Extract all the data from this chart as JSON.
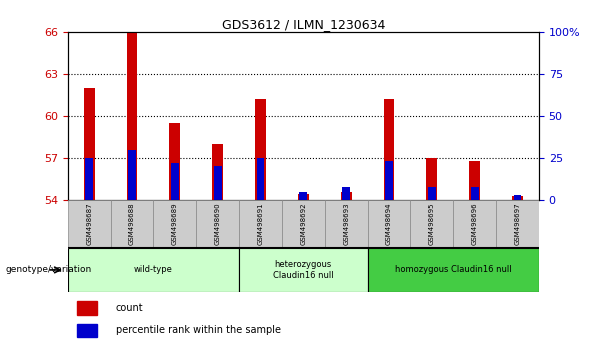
{
  "title": "GDS3612 / ILMN_1230634",
  "samples": [
    "GSM498687",
    "GSM498688",
    "GSM498689",
    "GSM498690",
    "GSM498691",
    "GSM498692",
    "GSM498693",
    "GSM498694",
    "GSM498695",
    "GSM498696",
    "GSM498697"
  ],
  "count_values": [
    62.0,
    66.0,
    59.5,
    58.0,
    61.2,
    54.4,
    54.6,
    61.2,
    57.0,
    56.8,
    54.3
  ],
  "percentile_values": [
    25,
    30,
    22,
    20,
    25,
    5,
    8,
    23,
    8,
    8,
    3
  ],
  "y_min": 54,
  "y_max": 66,
  "y_ticks": [
    54,
    57,
    60,
    63,
    66
  ],
  "y2_ticks": [
    0,
    25,
    50,
    75,
    100
  ],
  "y2_tick_labels": [
    "0",
    "25",
    "50",
    "75",
    "100%"
  ],
  "bar_color_red": "#cc0000",
  "bar_color_blue": "#0000cc",
  "background_color": "#ffffff",
  "genotype_label": "genotype/variation",
  "legend_count": "count",
  "legend_percentile": "percentile rank within the sample",
  "red_bar_width": 0.25,
  "blue_bar_width": 0.18,
  "tick_label_color_left": "#cc0000",
  "tick_label_color_right": "#0000cc",
  "groups": [
    {
      "label": "wild-type",
      "start": 0,
      "end": 3,
      "color": "#ccffcc"
    },
    {
      "label": "heterozygous\nClaudin16 null",
      "start": 4,
      "end": 6,
      "color": "#ccffcc"
    },
    {
      "label": "homozygous Claudin16 null",
      "start": 7,
      "end": 10,
      "color": "#44cc44"
    }
  ]
}
